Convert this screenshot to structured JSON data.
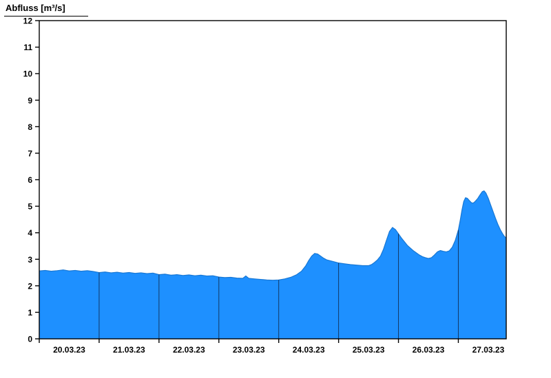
{
  "title": "Abfluss [m³/s]",
  "chart_data": {
    "type": "area",
    "title": "Abfluss [m³/s]",
    "ylabel": "Abfluss [m³/s]",
    "ylim": [
      0,
      12
    ],
    "yticks": [
      0,
      1,
      2,
      3,
      4,
      5,
      6,
      7,
      8,
      9,
      10,
      11,
      12
    ],
    "x_day_labels": [
      "20.03.23",
      "21.03.23",
      "22.03.23",
      "23.03.23",
      "24.03.23",
      "25.03.23",
      "26.03.23",
      "27.03.23"
    ],
    "x_range_days": [
      0,
      7.8
    ],
    "grid": false,
    "legend": "none",
    "fill_color": "#1e90ff",
    "line_color": "#1777d4",
    "separator_color": "#10284a",
    "frame_color": "#000000",
    "series": [
      {
        "name": "Abfluss",
        "x_days": [
          0,
          0.1,
          0.2,
          0.3,
          0.4,
          0.5,
          0.6,
          0.7,
          0.8,
          0.9,
          1.0,
          1.1,
          1.2,
          1.3,
          1.4,
          1.5,
          1.6,
          1.7,
          1.8,
          1.9,
          2.0,
          2.1,
          2.2,
          2.3,
          2.4,
          2.5,
          2.6,
          2.7,
          2.8,
          2.9,
          3.0,
          3.1,
          3.2,
          3.3,
          3.4,
          3.45,
          3.5,
          3.6,
          3.7,
          3.8,
          3.9,
          4.0,
          4.1,
          4.2,
          4.3,
          4.38,
          4.45,
          4.5,
          4.55,
          4.6,
          4.65,
          4.7,
          4.75,
          4.8,
          4.9,
          5.0,
          5.1,
          5.2,
          5.3,
          5.4,
          5.5,
          5.55,
          5.6,
          5.65,
          5.7,
          5.75,
          5.8,
          5.85,
          5.9,
          5.95,
          6.0,
          6.05,
          6.1,
          6.15,
          6.2,
          6.25,
          6.3,
          6.35,
          6.4,
          6.45,
          6.5,
          6.55,
          6.6,
          6.65,
          6.7,
          6.75,
          6.8,
          6.85,
          6.9,
          6.95,
          7.0,
          7.03,
          7.06,
          7.09,
          7.12,
          7.15,
          7.19,
          7.22,
          7.25,
          7.28,
          7.32,
          7.36,
          7.4,
          7.43,
          7.46,
          7.5,
          7.54,
          7.58,
          7.62,
          7.66,
          7.7,
          7.74,
          7.77,
          7.8
        ],
        "values": [
          2.56,
          2.58,
          2.55,
          2.57,
          2.6,
          2.56,
          2.58,
          2.55,
          2.57,
          2.54,
          2.5,
          2.52,
          2.49,
          2.51,
          2.48,
          2.5,
          2.47,
          2.49,
          2.46,
          2.48,
          2.42,
          2.44,
          2.4,
          2.42,
          2.39,
          2.41,
          2.38,
          2.4,
          2.37,
          2.38,
          2.33,
          2.31,
          2.32,
          2.29,
          2.28,
          2.37,
          2.28,
          2.26,
          2.24,
          2.22,
          2.21,
          2.22,
          2.26,
          2.32,
          2.42,
          2.55,
          2.75,
          2.95,
          3.12,
          3.22,
          3.2,
          3.12,
          3.04,
          2.98,
          2.92,
          2.86,
          2.83,
          2.8,
          2.78,
          2.76,
          2.76,
          2.8,
          2.88,
          2.98,
          3.12,
          3.38,
          3.72,
          4.05,
          4.2,
          4.12,
          3.96,
          3.8,
          3.66,
          3.52,
          3.42,
          3.32,
          3.24,
          3.16,
          3.1,
          3.06,
          3.03,
          3.06,
          3.16,
          3.28,
          3.33,
          3.3,
          3.28,
          3.32,
          3.46,
          3.72,
          4.1,
          4.45,
          4.85,
          5.18,
          5.32,
          5.3,
          5.2,
          5.13,
          5.12,
          5.18,
          5.28,
          5.42,
          5.55,
          5.58,
          5.5,
          5.3,
          5.05,
          4.8,
          4.55,
          4.32,
          4.12,
          3.96,
          3.86,
          3.8
        ]
      }
    ]
  },
  "layout_note": ""
}
